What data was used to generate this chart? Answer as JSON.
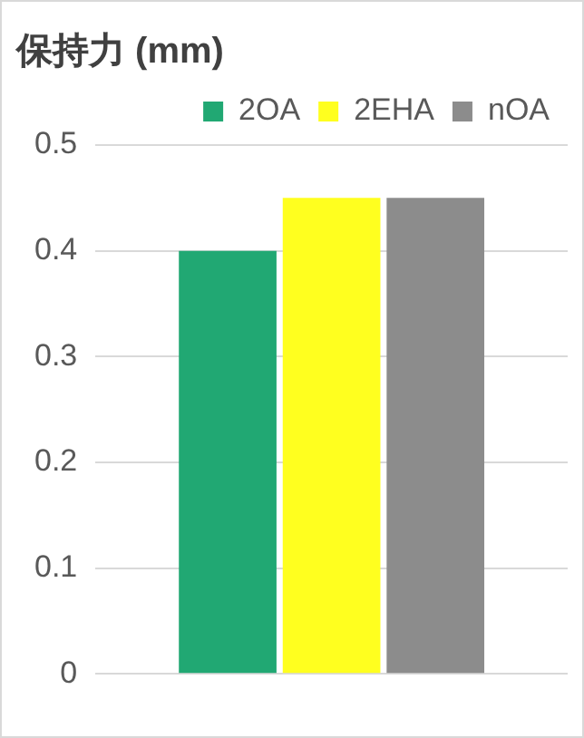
{
  "chart_data": {
    "type": "bar",
    "title": "保持力 (mm)",
    "categories": [
      null
    ],
    "series": [
      {
        "name": "2OA",
        "color": "#21a873",
        "values": [
          0.4
        ]
      },
      {
        "name": "2EHA",
        "color": "#ffff1f",
        "values": [
          0.45
        ]
      },
      {
        "name": "nOA",
        "color": "#8c8c8c",
        "values": [
          0.45
        ]
      }
    ],
    "ylim": [
      0,
      0.5
    ],
    "yticks": [
      0,
      0.1,
      0.2,
      0.3,
      0.4,
      0.5
    ],
    "grid": "y",
    "legend": "top right"
  }
}
